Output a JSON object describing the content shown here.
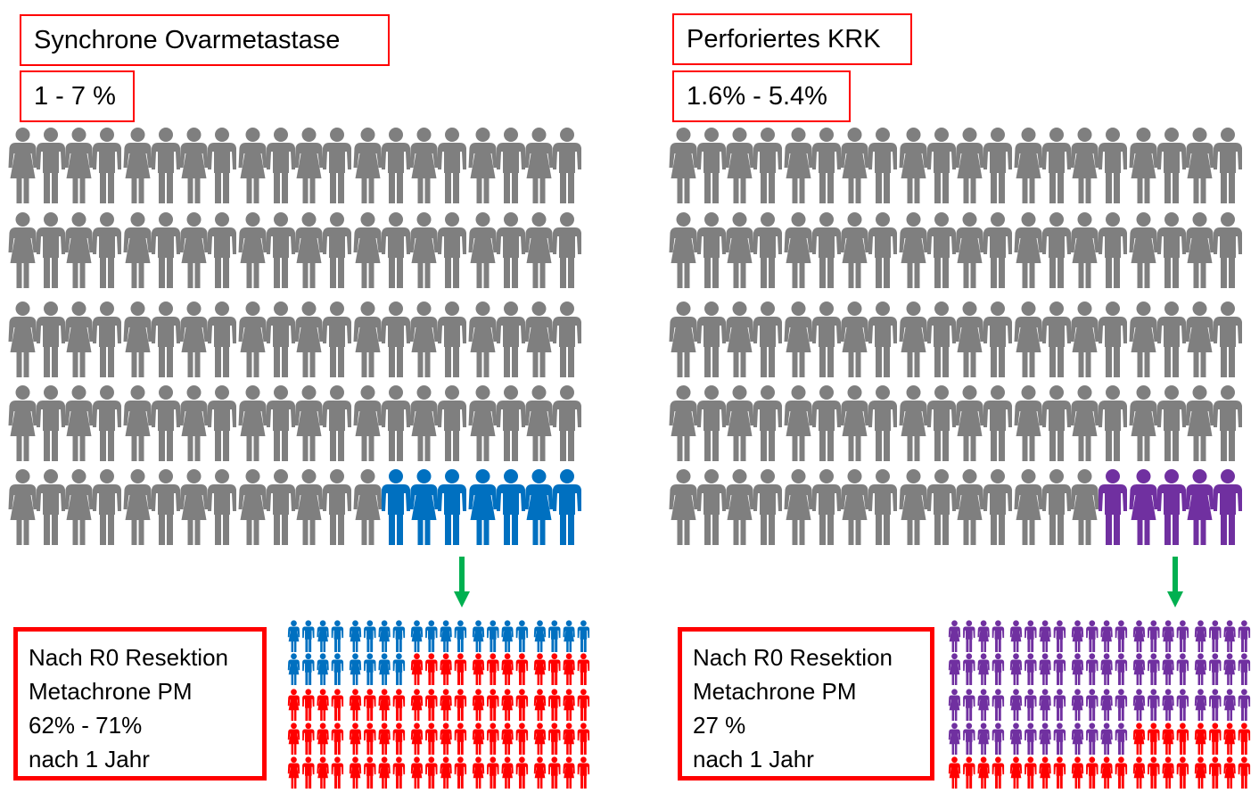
{
  "colors": {
    "neutral": "#7f7f7f",
    "left_accent": "#0070c0",
    "right_accent": "#7030a0",
    "recurrence": "#ff0000",
    "arrow": "#00b050",
    "border": "#ff0000"
  },
  "left": {
    "title": "Synchrone Ovarmetastase",
    "range": "1 - 7 %",
    "population": {
      "total": 100,
      "highlighted": 7
    },
    "result": {
      "lines": [
        "Nach R0 Resektion",
        "Metachrone PM",
        "62% - 71%",
        "nach 1 Jahr"
      ],
      "total": 100,
      "no_recurrence": 28,
      "recurrence": 72
    }
  },
  "right": {
    "title": "Perforiertes KRK",
    "range": "1.6% - 5.4%",
    "population": {
      "total": 100,
      "highlighted": 5
    },
    "result": {
      "lines": [
        "Nach R0 Resektion",
        "Metachrone PM",
        "27 %",
        "nach 1 Jahr"
      ],
      "total": 100,
      "no_recurrence": 72,
      "recurrence": 28
    }
  }
}
